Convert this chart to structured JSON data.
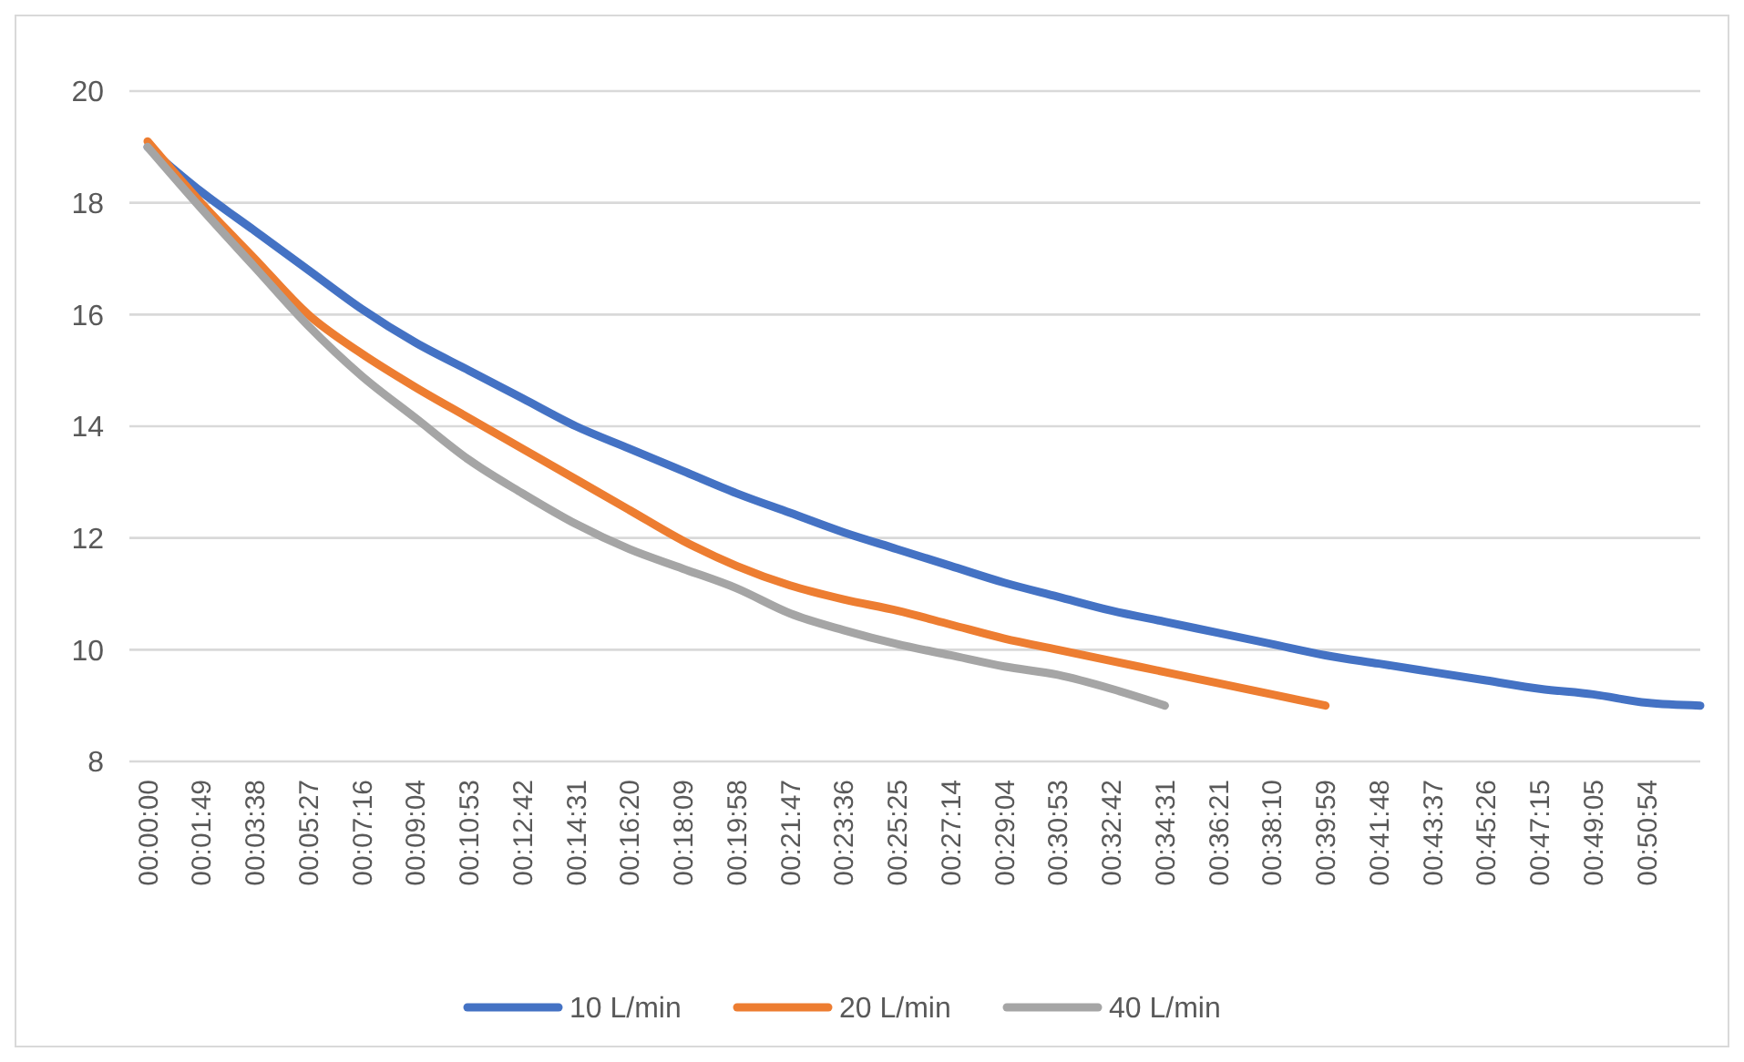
{
  "chart_data": {
    "type": "line",
    "categories": [
      "00:00:00",
      "00:01:49",
      "00:03:38",
      "00:05:27",
      "00:07:16",
      "00:09:04",
      "00:10:53",
      "00:12:42",
      "00:14:31",
      "00:16:20",
      "00:18:09",
      "00:19:58",
      "00:21:47",
      "00:23:36",
      "00:25:25",
      "00:27:14",
      "00:29:04",
      "00:30:53",
      "00:32:42",
      "00:34:31",
      "00:36:21",
      "00:38:10",
      "00:39:59",
      "00:41:48",
      "00:43:37",
      "00:45:26",
      "00:47:15",
      "00:49:05",
      "00:50:54",
      null
    ],
    "series": [
      {
        "name": "10 L/min",
        "color": "#4472c4",
        "values": [
          19.0,
          18.2,
          17.5,
          16.8,
          16.1,
          15.5,
          15.0,
          14.5,
          14.0,
          13.6,
          13.2,
          12.8,
          12.45,
          12.1,
          11.8,
          11.5,
          11.2,
          10.95,
          10.7,
          10.5,
          10.3,
          10.1,
          9.9,
          9.75,
          9.6,
          9.45,
          9.3,
          9.2,
          9.05,
          9.0
        ]
      },
      {
        "name": "20 L/min",
        "color": "#ed7d31",
        "values": [
          19.1,
          18.0,
          17.0,
          16.0,
          15.3,
          14.7,
          14.15,
          13.6,
          13.05,
          12.5,
          11.95,
          11.5,
          11.15,
          10.9,
          10.7,
          10.45,
          10.2,
          10.0,
          9.8,
          9.6,
          9.4,
          9.2,
          9.0,
          null,
          null,
          null,
          null,
          null,
          null,
          null
        ]
      },
      {
        "name": "40 L/min",
        "color": "#a5a5a5",
        "values": [
          19.0,
          17.9,
          16.85,
          15.8,
          14.9,
          14.15,
          13.4,
          12.8,
          12.25,
          11.8,
          11.45,
          11.1,
          10.65,
          10.35,
          10.1,
          9.9,
          9.7,
          9.55,
          9.3,
          9.0,
          null,
          null,
          null,
          null,
          null,
          null,
          null,
          null,
          null,
          null
        ]
      }
    ],
    "ylim": [
      8,
      20
    ],
    "yticks": [
      8,
      10,
      12,
      14,
      16,
      18,
      20
    ],
    "grid": "y",
    "legend": "bottom",
    "marker": "none",
    "line_style": "solid"
  }
}
